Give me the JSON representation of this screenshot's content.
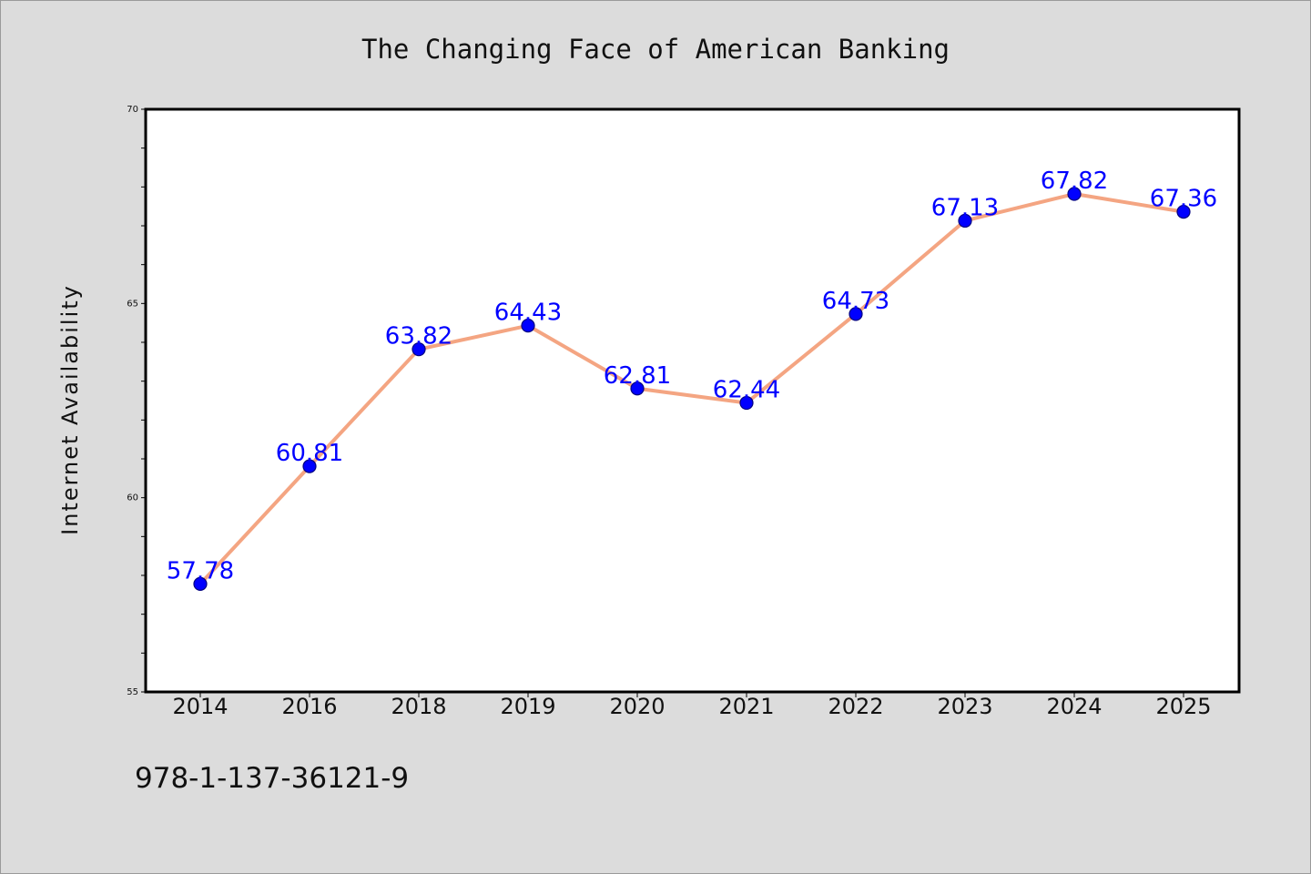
{
  "chart_data": {
    "type": "line",
    "title": "The Changing Face of American Banking",
    "xlabel": "",
    "ylabel": "Internet Availability",
    "categories": [
      "2014",
      "2016",
      "2018",
      "2019",
      "2020",
      "2021",
      "2022",
      "2023",
      "2024",
      "2025"
    ],
    "series": [
      {
        "values": [
          57.78,
          60.81,
          63.82,
          64.43,
          62.81,
          62.44,
          64.73,
          67.13,
          67.82,
          67.36
        ],
        "data_labels": [
          "57.78",
          "60.81",
          "63.82",
          "64.43",
          "62.81",
          "62.44",
          "64.73",
          "67.13",
          "67.82",
          "67.36"
        ]
      }
    ],
    "ylim": [
      55,
      70
    ],
    "yticks": [
      "55",
      "60",
      "65",
      "70"
    ],
    "grid": false,
    "legend": "none",
    "colors": {
      "line": "#f4a582",
      "marker": "#0000ff",
      "marker_edge": "#000080",
      "data_label": "#0000ff",
      "background": "#dcdcdc",
      "plot_background": "#ffffff"
    }
  },
  "footer": {
    "code": "978-1-137-36121-9"
  }
}
